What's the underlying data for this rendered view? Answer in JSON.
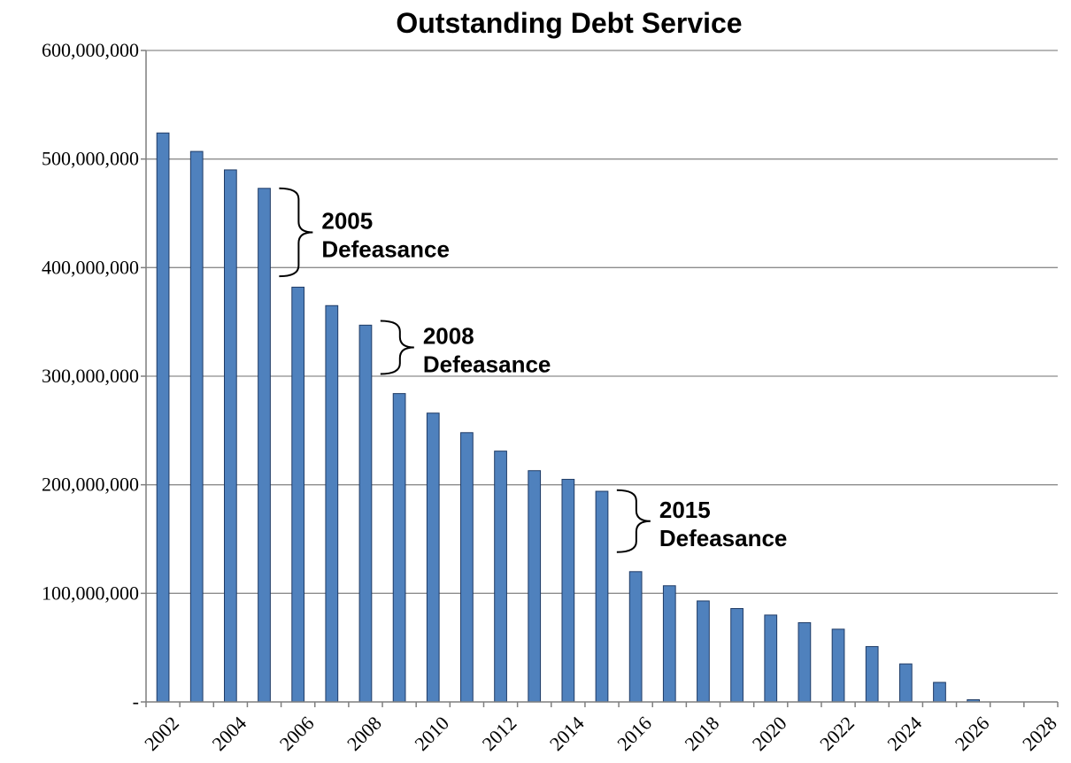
{
  "chart_data": {
    "type": "bar",
    "title": "Outstanding Debt Service",
    "xlabel": "",
    "ylabel": "",
    "ylim": [
      0,
      600000000
    ],
    "yticks": [
      {
        "value": 0,
        "label": "-"
      },
      {
        "value": 100000000,
        "label": "100,000,000"
      },
      {
        "value": 200000000,
        "label": "200,000,000"
      },
      {
        "value": 300000000,
        "label": "300,000,000"
      },
      {
        "value": 400000000,
        "label": "400,000,000"
      },
      {
        "value": 500000000,
        "label": "500,000,000"
      },
      {
        "value": 600000000,
        "label": "600,000,000"
      }
    ],
    "grid": true,
    "legend": "none",
    "bar_color": "#4f81bd",
    "categories": [
      "2002",
      "2003",
      "2004",
      "2005",
      "2006",
      "2007",
      "2008",
      "2009",
      "2010",
      "2011",
      "2012",
      "2013",
      "2014",
      "2015",
      "2016",
      "2017",
      "2018",
      "2019",
      "2020",
      "2021",
      "2022",
      "2023",
      "2024",
      "2025",
      "2026",
      "2027",
      "2028"
    ],
    "xtick_labels": [
      "2002",
      "",
      "2004",
      "",
      "2006",
      "",
      "2008",
      "",
      "2010",
      "",
      "2012",
      "",
      "2014",
      "",
      "2016",
      "",
      "2018",
      "",
      "2020",
      "",
      "2022",
      "",
      "2024",
      "",
      "2026",
      "",
      "2028"
    ],
    "values": [
      524000000,
      507000000,
      490000000,
      473000000,
      382000000,
      365000000,
      347000000,
      284000000,
      266000000,
      248000000,
      231000000,
      213000000,
      205000000,
      194000000,
      120000000,
      107000000,
      93000000,
      86000000,
      80000000,
      73000000,
      67000000,
      51000000,
      35000000,
      18000000,
      2000000,
      0,
      0
    ],
    "annotations": [
      {
        "line1": "2005",
        "line2": "Defeasance",
        "from_category": "2005",
        "top_value": 473000000,
        "bottom_value": 392000000
      },
      {
        "line1": "2008",
        "line2": "Defeasance",
        "from_category": "2008",
        "top_value": 351000000,
        "bottom_value": 302000000
      },
      {
        "line1": "2015",
        "line2": "Defeasance",
        "from_category": "2015",
        "top_value": 195000000,
        "bottom_value": 138000000
      }
    ]
  }
}
